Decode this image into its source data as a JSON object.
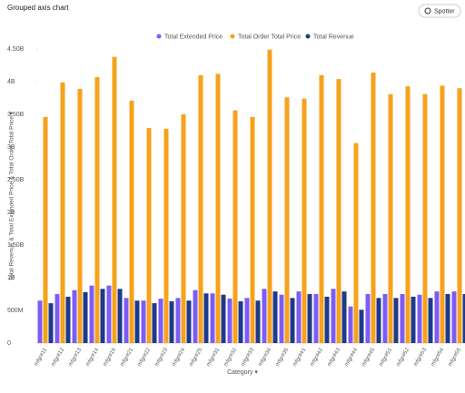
{
  "chart_data": {
    "type": "bar",
    "title": "Grouped axis chart",
    "x_label": "Category ▾",
    "y_label": "Total Revenue & Total Extended Price & Total Order Total Price ▾",
    "categories": [
      "mfgr#11",
      "mfgr#12",
      "mfgr#13",
      "mfgr#14",
      "mfgr#15",
      "mfgr#21",
      "mfgr#22",
      "mfgr#23",
      "mfgr#24",
      "mfgr#25",
      "mfgr#31",
      "mfgr#32",
      "mfgr#33",
      "mfgr#34",
      "mfgr#35",
      "mfgr#41",
      "mfgr#42",
      "mfgr#43",
      "mfgr#44",
      "mfgr#45",
      "mfgr#51",
      "mfgr#52",
      "mfgr#53",
      "mfgr#54",
      "mfgr#55"
    ],
    "series": [
      {
        "name": "Total Extended Price",
        "color": "#7c5cf6",
        "values": [
          650000000.0,
          750000000.0,
          810000000.0,
          880000000.0,
          880000000.0,
          690000000.0,
          650000000.0,
          680000000.0,
          690000000.0,
          810000000.0,
          760000000.0,
          680000000.0,
          690000000.0,
          830000000.0,
          740000000.0,
          790000000.0,
          750000000.0,
          830000000.0,
          560000000.0,
          750000000.0,
          750000000.0,
          750000000.0,
          740000000.0,
          790000000.0,
          790000000.0
        ]
      },
      {
        "name": "Total Order Total Price",
        "color": "#f7a21b",
        "values": [
          3460000000.0,
          3990000000.0,
          3890000000.0,
          4070000000.0,
          4380000000.0,
          3710000000.0,
          3290000000.0,
          3280000000.0,
          3500000000.0,
          4100000000.0,
          4120000000.0,
          3560000000.0,
          3460000000.0,
          4490000000.0,
          3760000000.0,
          3740000000.0,
          4100000000.0,
          4040000000.0,
          3060000000.0,
          4140000000.0,
          3810000000.0,
          3930000000.0,
          3810000000.0,
          3940000000.0,
          3900000000.0
        ]
      },
      {
        "name": "Total Revenue",
        "color": "#1e3a8a",
        "values": [
          610000000.0,
          710000000.0,
          780000000.0,
          830000000.0,
          830000000.0,
          650000000.0,
          610000000.0,
          640000000.0,
          650000000.0,
          760000000.0,
          740000000.0,
          640000000.0,
          650000000.0,
          790000000.0,
          690000000.0,
          750000000.0,
          710000000.0,
          790000000.0,
          510000000.0,
          690000000.0,
          690000000.0,
          710000000.0,
          690000000.0,
          750000000.0,
          750000000.0
        ]
      }
    ],
    "ylim": [
      0,
      4500000000
    ],
    "yticks": [
      0,
      {
        "value": 500000000,
        "label": "500M"
      },
      {
        "value": 1000000000,
        "label": "1B"
      },
      {
        "value": 1500000000,
        "label": "1.50B"
      },
      {
        "value": 2000000000,
        "label": "2B"
      },
      {
        "value": 2500000000,
        "label": "2.50B"
      },
      {
        "value": 3000000000,
        "label": "3B"
      },
      {
        "value": 3500000000,
        "label": "3.50B"
      },
      {
        "value": 4000000000,
        "label": "4B"
      },
      {
        "value": 4500000000,
        "label": "4.50B"
      }
    ],
    "grid": false,
    "legend": "top"
  },
  "toolbar": {
    "button": "Spotter"
  }
}
